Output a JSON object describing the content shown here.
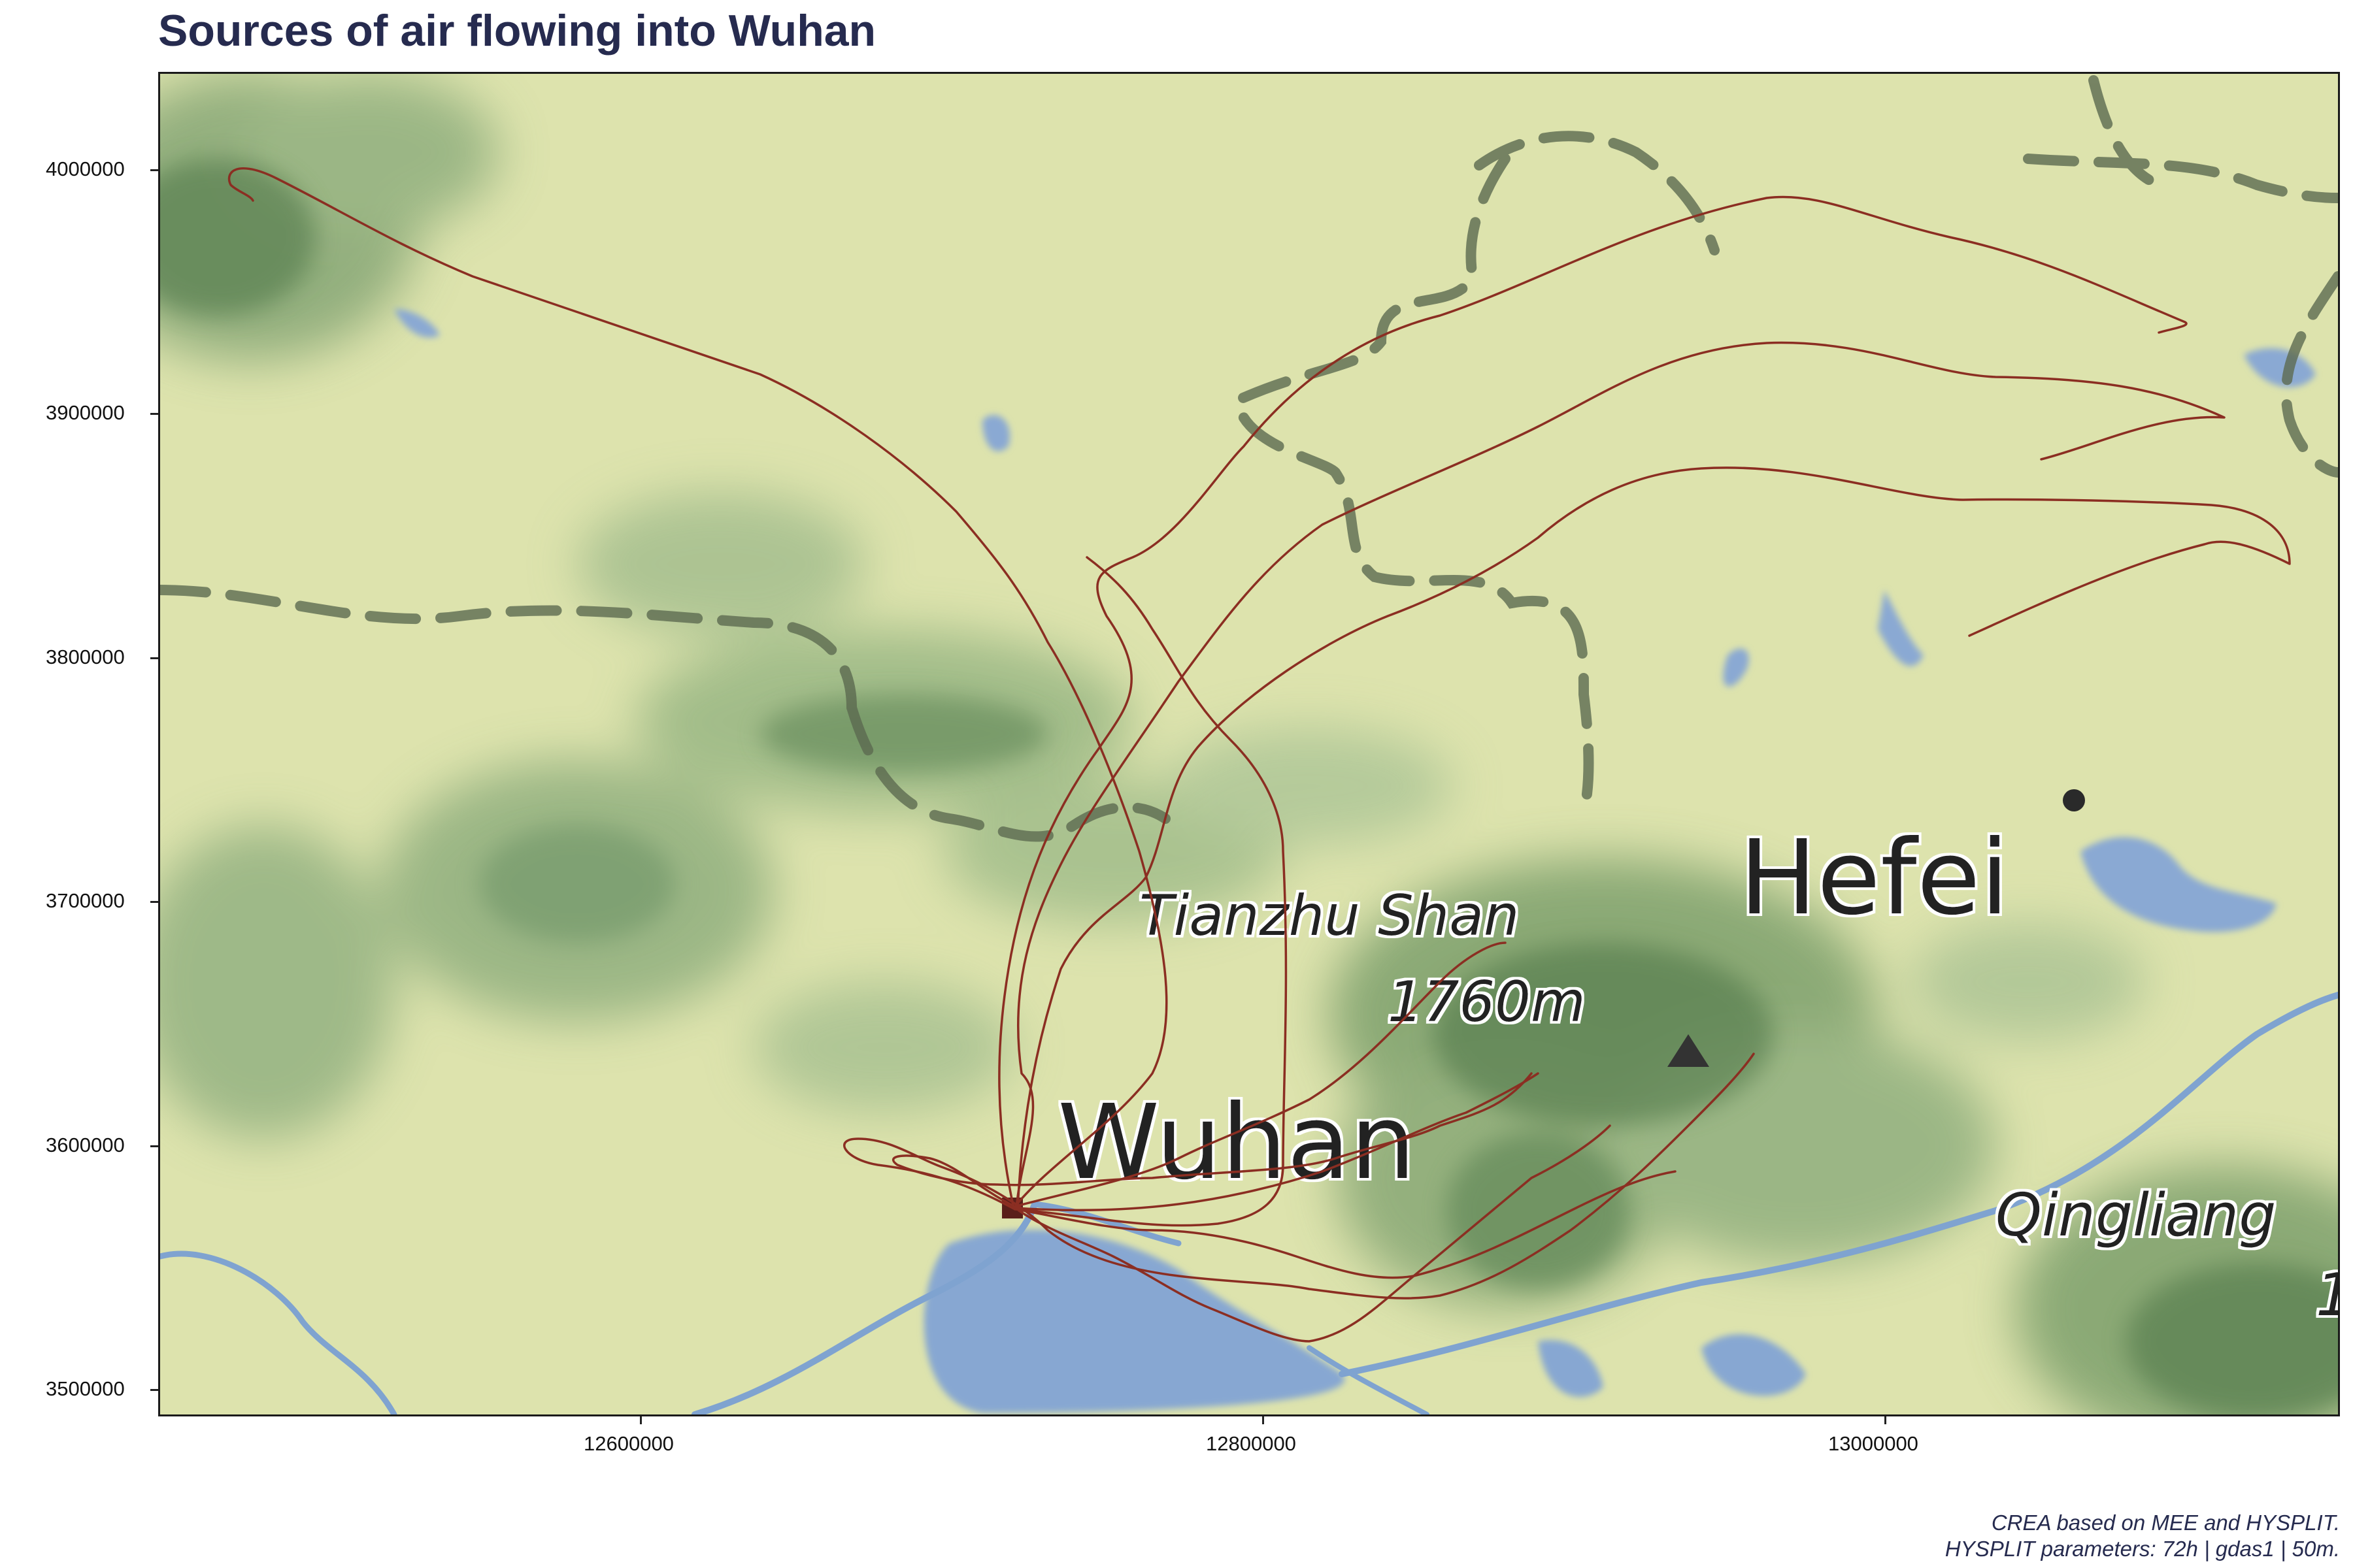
{
  "title": "Sources of air flowing into Wuhan",
  "x_ticks": [
    "12600000",
    "12800000",
    "13000000"
  ],
  "y_ticks": [
    "4000000",
    "3900000",
    "3800000",
    "3700000",
    "3600000",
    "3500000"
  ],
  "map_labels": {
    "peak_name": "Tianzhu Shan",
    "peak_elevation": "1760m",
    "city_wuhan": "Wuhan",
    "city_hefei": "Hefei",
    "partial_label": "Qingliang",
    "partial_number": "1"
  },
  "caption": {
    "line1": "CREA based on MEE and HYSPLIT.",
    "line2": "HYSPLIT parameters: 72h | gdas1 | 50m."
  },
  "colors": {
    "title": "#262b4f",
    "trajectory": "#8b2e22",
    "lowland": "#dde3ad",
    "forest": "#6e9468",
    "water": "#87a7d2"
  },
  "trajectory_count": 7
}
